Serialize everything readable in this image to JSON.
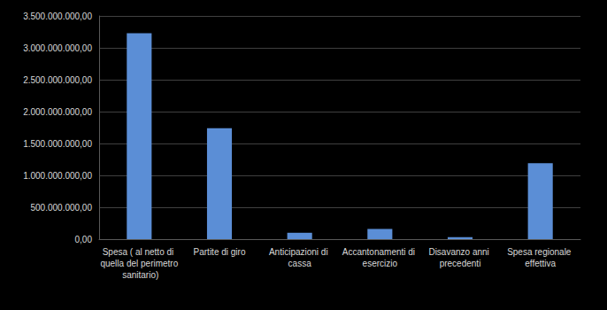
{
  "chart_data": {
    "type": "bar",
    "categories": [
      "Spesa ( al netto di quella del perimetro sanitario)",
      "Partite di giro",
      "Anticipazioni di cassa",
      "Accantonamenti di esercizio",
      "Disavanzo anni precedenti",
      "Spesa regionale effettiva"
    ],
    "values": [
      3230000000,
      1740000000,
      100000000,
      160000000,
      30000000,
      1190000000
    ],
    "color": "#5b8ed6",
    "ylim": [
      0,
      3500000000
    ],
    "yticks": [
      {
        "value": 0,
        "label": "0,00"
      },
      {
        "value": 500000000,
        "label": "500.000.000,00"
      },
      {
        "value": 1000000000,
        "label": "1.000.000.000,00"
      },
      {
        "value": 1500000000,
        "label": "1.500.000.000,00"
      },
      {
        "value": 2000000000,
        "label": "2.000.000.000,00"
      },
      {
        "value": 2500000000,
        "label": "2.500.000.000,00"
      },
      {
        "value": 3000000000,
        "label": "3.000.000.000,00"
      },
      {
        "value": 3500000000,
        "label": "3.500.000.000,00"
      }
    ],
    "grid": true
  }
}
